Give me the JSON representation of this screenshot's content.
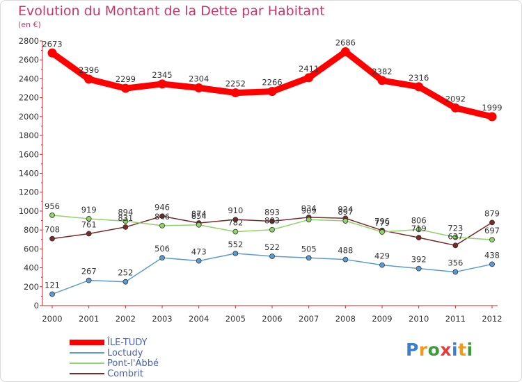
{
  "header": {
    "title": "Evolution du Montant de la Dette par Habitant",
    "subtitle": "(en €)"
  },
  "chart_data": {
    "type": "line",
    "title": "Evolution du Montant de la Dette par Habitant",
    "ylabel": "(en €)",
    "xlabel": "",
    "ylim": [
      0,
      2800
    ],
    "yticks": [
      0,
      200,
      400,
      600,
      800,
      1000,
      1200,
      1400,
      1600,
      1800,
      2000,
      2200,
      2400,
      2600,
      2800
    ],
    "categories": [
      "2000",
      "2001",
      "2002",
      "2003",
      "2004",
      "2005",
      "2006",
      "2007",
      "2008",
      "2009",
      "2010",
      "2011",
      "2012"
    ],
    "grid": false,
    "legend_position": "bottom-left",
    "series": [
      {
        "name": "ÎLE-TUDY",
        "color": "#ff0000",
        "values": [
          2673,
          2396,
          2299,
          2345,
          2304,
          2252,
          2266,
          2411,
          2686,
          2382,
          2316,
          2092,
          1999
        ]
      },
      {
        "name": "Loctudy",
        "color": "#5b9bd5",
        "values": [
          121,
          267,
          252,
          506,
          473,
          552,
          522,
          505,
          488,
          429,
          392,
          356,
          438
        ]
      },
      {
        "name": "Pont-l'Abbé",
        "color": "#8fd16a",
        "values": [
          956,
          919,
          894,
          846,
          854,
          782,
          803,
          909,
          897,
          779,
          806,
          723,
          697
        ]
      },
      {
        "name": "Combrit",
        "color": "#7a2828",
        "values": [
          708,
          761,
          831,
          946,
          874,
          910,
          893,
          934,
          924,
          796,
          719,
          637,
          879
        ]
      }
    ]
  },
  "logo": {
    "letters": [
      "P",
      "r",
      "o",
      "x",
      "i",
      "t",
      "i"
    ],
    "colors": [
      "#3a7fd0",
      "#f39a1a",
      "#3a9a3a",
      "#e83a3a",
      "#3a7fd0",
      "#f39a1a",
      "#3a9a3a"
    ]
  }
}
